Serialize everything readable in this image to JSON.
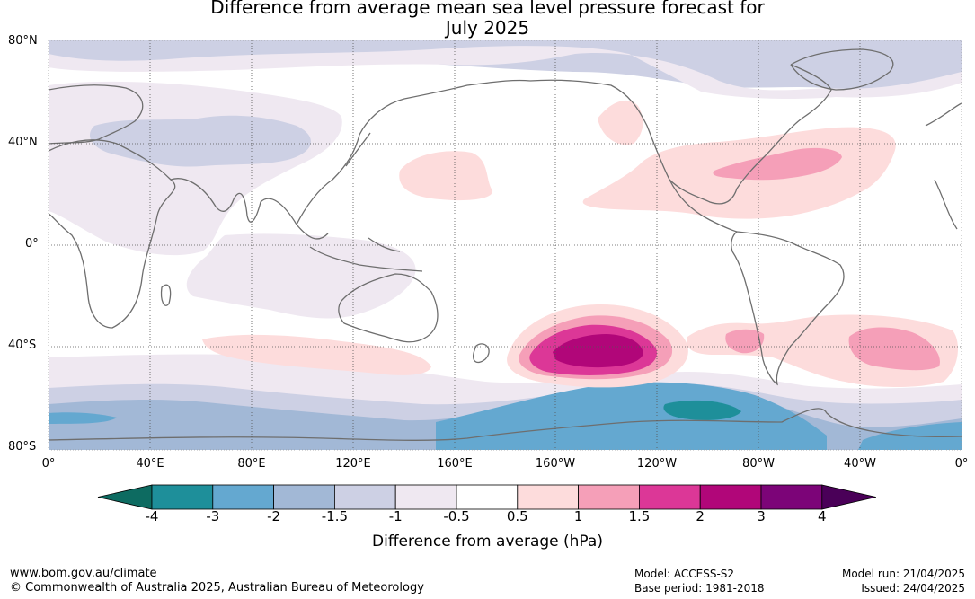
{
  "title_line1": "Difference from average mean sea level pressure forecast for",
  "title_line2": "July 2025",
  "lat_labels": [
    "80°N",
    "40°N",
    "0°",
    "40°S",
    "80°S"
  ],
  "lon_labels": [
    "0°",
    "40°E",
    "80°E",
    "120°E",
    "160°E",
    "160°W",
    "120°W",
    "80°W",
    "40°W",
    "0°"
  ],
  "colorbar": {
    "ticks": [
      "-4",
      "-3",
      "-2",
      "-1.5",
      "-1",
      "-0.5",
      "0.5",
      "1",
      "1.5",
      "2",
      "3",
      "4"
    ],
    "colors": [
      "#0d6b61",
      "#1e8f9a",
      "#64a8d0",
      "#a2b8d6",
      "#cdd0e4",
      "#efe8f1",
      "#ffffff",
      "#fddcdc",
      "#f59fb8",
      "#dc3797",
      "#b10679",
      "#7c0478",
      "#4a0058"
    ],
    "label": "Difference from average (hPa)"
  },
  "footer": {
    "website": "www.bom.gov.au/climate",
    "copyright": "© Commonwealth of Australia 2025, Australian Bureau of Meteorology",
    "model": "Model: ACCESS-S2",
    "base_period": "Base period: 1981-2018",
    "model_run": "Model run: 21/04/2025",
    "issued": "Issued: 24/04/2025"
  }
}
